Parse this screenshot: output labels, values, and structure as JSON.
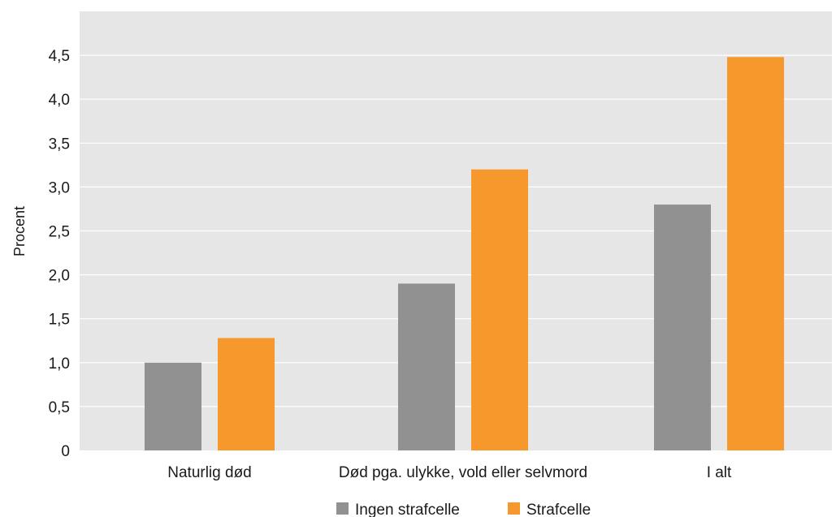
{
  "chart_data": {
    "type": "bar",
    "ylabel": "Procent",
    "xlabel": "",
    "ylim": [
      0,
      5
    ],
    "yticks": [
      0,
      0.5,
      1.0,
      1.5,
      2.0,
      2.5,
      3.0,
      3.5,
      4.0,
      4.5
    ],
    "ytick_labels": [
      "0",
      "0,5",
      "1,0",
      "1,5",
      "2,0",
      "2,5",
      "3,0",
      "3,5",
      "4,0",
      "4,5"
    ],
    "categories": [
      "Naturlig død",
      "Død pga. ulykke, vold eller selvmord",
      "I alt"
    ],
    "series": [
      {
        "name": "Ingen strafcelle",
        "color": "#919191",
        "values": [
          1.0,
          1.9,
          2.8
        ]
      },
      {
        "name": "Strafcelle",
        "color": "#f7982d",
        "values": [
          1.28,
          3.2,
          4.48
        ]
      }
    ],
    "grid": true,
    "legend": "bottom-center",
    "background_color": "#e6e6e6",
    "gridline_color": "#ffffff"
  }
}
